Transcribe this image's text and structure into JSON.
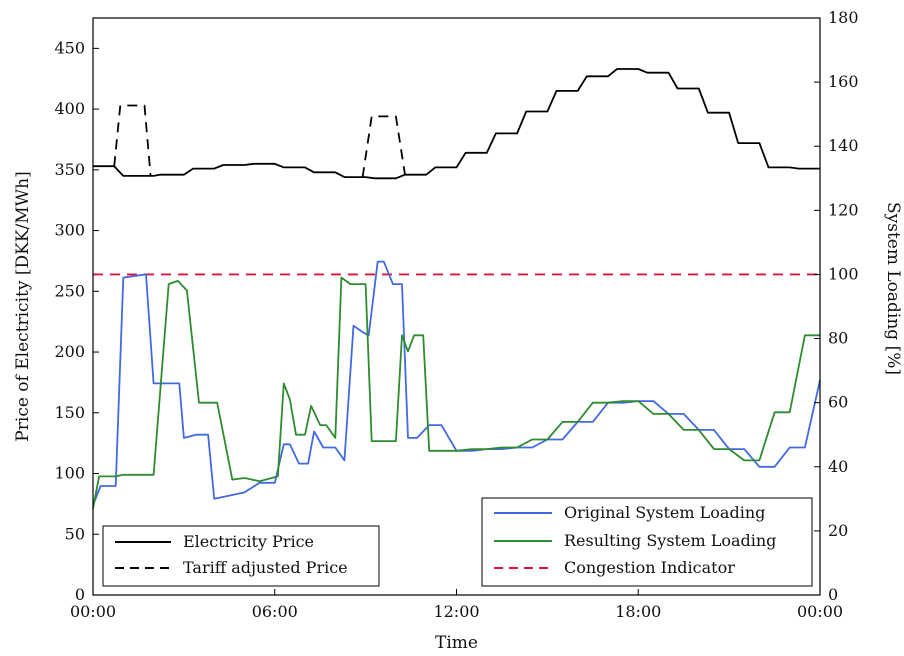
{
  "chart_data": {
    "type": "line",
    "xlabel": "Time",
    "ylabel_left": "Price of Electricity [DKK/MWh]",
    "ylabel_right": "System Loading [%]",
    "x_ticks": [
      "00:00",
      "06:00",
      "12:00",
      "18:00",
      "00:00"
    ],
    "x_tick_hours": [
      0,
      6,
      12,
      18,
      24
    ],
    "xlim": [
      0,
      24
    ],
    "ylim_left": [
      0,
      475
    ],
    "ylim_right": [
      0,
      180
    ],
    "y_ticks_left": [
      0,
      50,
      100,
      150,
      200,
      250,
      300,
      350,
      400,
      450
    ],
    "y_ticks_right": [
      0,
      20,
      40,
      60,
      80,
      100,
      120,
      140,
      160,
      180
    ],
    "grid": false,
    "legends": [
      {
        "placement": "bottom-left",
        "entries": [
          "Electricity Price",
          "Tariff adjusted Price"
        ]
      },
      {
        "placement": "bottom-right",
        "entries": [
          "Original System Loading",
          "Resulting System Loading",
          "Congestion Indicator"
        ]
      }
    ],
    "series": [
      {
        "name": "Electricity Price",
        "axis": "left",
        "color": "#000000",
        "dash": "solid",
        "x": [
          0,
          0.7,
          1,
          2,
          2.2,
          3,
          3.3,
          4,
          4.3,
          5,
          5.3,
          6,
          6.3,
          7,
          7.3,
          8,
          8.3,
          9,
          9.3,
          10,
          10.3,
          11,
          11.3,
          12,
          12.3,
          13,
          13.3,
          14,
          14.3,
          15,
          15.3,
          16,
          16.3,
          17,
          17.3,
          18,
          18.3,
          19,
          19.3,
          20,
          20.3,
          21,
          21.3,
          22,
          22.3,
          23,
          23.3,
          24
        ],
        "y": [
          353,
          353,
          345,
          345,
          346,
          346,
          351,
          351,
          354,
          354,
          355,
          355,
          352,
          352,
          348,
          348,
          344,
          344,
          343,
          343,
          346,
          346,
          352,
          352,
          364,
          364,
          380,
          380,
          398,
          398,
          415,
          415,
          427,
          427,
          433,
          433,
          430,
          430,
          417,
          417,
          397,
          397,
          372,
          372,
          352,
          352,
          351,
          351
        ]
      },
      {
        "name": "Tariff adjusted Price",
        "axis": "left",
        "color": "#000000",
        "dash": "dashed",
        "segments": [
          {
            "x": [
              0.7,
              0.9,
              1.7,
              1.9
            ],
            "y": [
              353,
              403,
              403,
              345
            ]
          },
          {
            "x": [
              8.9,
              9.2,
              10.0,
              10.3
            ],
            "y": [
              344,
              394,
              394,
              346
            ]
          }
        ]
      },
      {
        "name": "Original System Loading",
        "axis": "right",
        "color": "#4169e1",
        "dash": "solid",
        "x": [
          0,
          0.25,
          0.75,
          1.0,
          1.75,
          2.0,
          2.85,
          3.0,
          3.4,
          3.8,
          4.0,
          4.5,
          5.0,
          5.5,
          6.0,
          6.3,
          6.5,
          6.8,
          7.1,
          7.3,
          7.6,
          8.0,
          8.3,
          8.6,
          8.9,
          9.1,
          9.4,
          9.6,
          9.9,
          10.2,
          10.4,
          10.7,
          11.1,
          11.5,
          12.0,
          12.5,
          13.0,
          13.5,
          14.0,
          14.5,
          15.0,
          15.5,
          16.0,
          16.5,
          17.0,
          17.5,
          18.0,
          18.5,
          19.0,
          19.5,
          20.0,
          20.5,
          21.0,
          21.5,
          22.0,
          22.5,
          23.0,
          23.5,
          24.0
        ],
        "y": [
          28,
          34,
          34,
          99,
          100,
          66,
          66,
          49,
          50,
          50,
          30,
          31,
          32,
          35,
          35,
          47,
          47,
          41,
          41,
          51,
          46,
          46,
          42,
          84,
          82,
          81,
          104,
          104,
          97,
          97,
          49,
          49,
          53,
          53,
          45,
          45,
          45.5,
          45.5,
          46,
          46,
          48.5,
          48.5,
          54,
          54,
          60,
          60,
          60.5,
          60.5,
          56.5,
          56.5,
          51.5,
          51.5,
          45.5,
          45.5,
          40,
          40,
          46,
          46,
          67
        ]
      },
      {
        "name": "Resulting System Loading",
        "axis": "right",
        "color": "#2e8b2e",
        "dash": "solid",
        "x": [
          0,
          0.2,
          0.75,
          1.0,
          1.75,
          2.0,
          2.5,
          2.8,
          3.1,
          3.5,
          3.9,
          4.1,
          4.6,
          5.0,
          5.5,
          5.9,
          6.1,
          6.3,
          6.5,
          6.7,
          7.0,
          7.2,
          7.5,
          7.7,
          8.0,
          8.2,
          8.5,
          9.0,
          9.2,
          9.6,
          10.0,
          10.2,
          10.4,
          10.6,
          10.9,
          11.1,
          11.5,
          12.0,
          12.5,
          13.0,
          13.5,
          14.0,
          14.5,
          15.0,
          15.5,
          16.0,
          16.5,
          17.0,
          17.5,
          18.0,
          18.5,
          19.0,
          19.5,
          20.0,
          20.5,
          21.0,
          21.5,
          22.0,
          22.5,
          23.0,
          23.5,
          24.0
        ],
        "y": [
          27,
          37,
          37,
          37.5,
          37.5,
          37.5,
          97,
          98,
          95,
          60,
          60,
          60,
          36,
          36.5,
          35.5,
          36.5,
          37,
          66,
          61,
          50,
          50,
          59,
          53,
          53,
          49,
          99,
          97,
          97,
          48,
          48,
          48,
          81,
          76,
          81,
          81,
          45,
          45,
          45,
          45.5,
          45.5,
          46,
          46,
          48.5,
          48.5,
          54,
          54,
          60,
          60,
          60.5,
          60.5,
          56.5,
          56.5,
          51.5,
          51.5,
          45.5,
          45.5,
          42,
          42,
          57,
          57,
          81,
          81
        ]
      },
      {
        "name": "Congestion Indicator",
        "axis": "right",
        "color": "#dc143c",
        "dash": "dashed",
        "constant": 100
      }
    ]
  }
}
